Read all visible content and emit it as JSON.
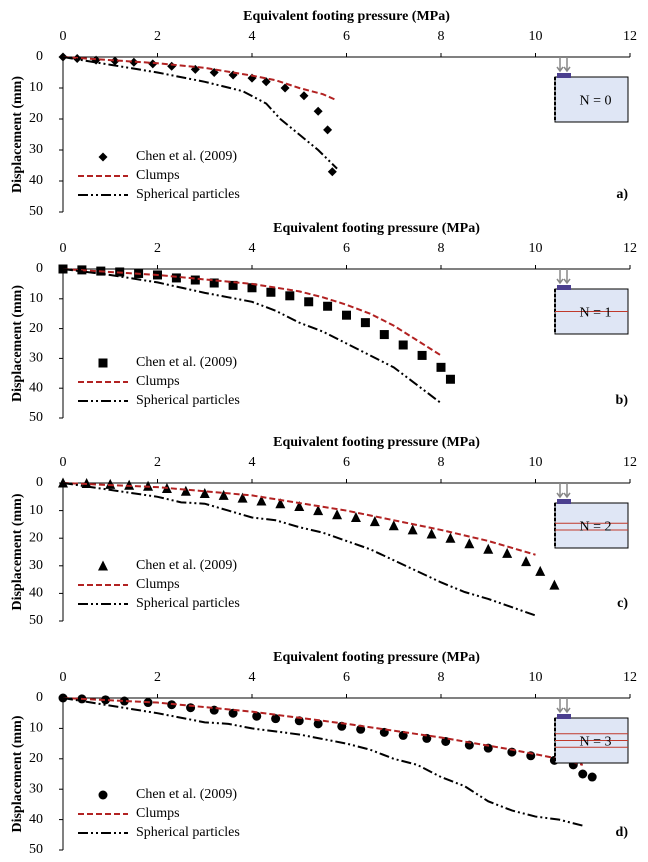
{
  "chart_data": [
    {
      "type": "line",
      "title": "Equivalent footing pressure (MPa)",
      "ylabel": "Displacement (mm)",
      "panel_label": "a)",
      "inset_label": "N = 0",
      "xlim": [
        0,
        12
      ],
      "xticks": [
        0,
        2,
        4,
        6,
        8,
        10,
        12
      ],
      "ylim": [
        0,
        50
      ],
      "yticks": [
        0,
        10,
        20,
        30,
        40,
        50
      ],
      "y_inverted": true,
      "series": [
        {
          "name": "Chen et al. (2009)",
          "color": "#000000",
          "style": "diamond",
          "x": [
            0,
            0.3,
            0.7,
            1.1,
            1.5,
            1.9,
            2.3,
            2.8,
            3.2,
            3.6,
            4.0,
            4.3,
            4.7,
            5.1,
            5.4,
            5.6,
            5.7
          ],
          "values": [
            0,
            0.5,
            1,
            1.3,
            1.7,
            2.2,
            3,
            4,
            5,
            5.8,
            6.8,
            8,
            10,
            12.5,
            17.5,
            23.5,
            37
          ]
        },
        {
          "name": "Clumps",
          "color": "#b22222",
          "style": "dashed",
          "x": [
            0,
            1,
            2,
            3,
            4,
            4.5,
            5,
            5.5,
            5.8
          ],
          "values": [
            0,
            1,
            2,
            3.5,
            6,
            7.5,
            10,
            12,
            14
          ]
        },
        {
          "name": "Spherical particles",
          "color": "#000000",
          "style": "dashdot",
          "x": [
            0,
            1,
            2,
            3,
            3.8,
            4.3,
            4.6,
            5,
            5.4,
            5.8
          ],
          "values": [
            0,
            2.5,
            5,
            8,
            11,
            15,
            20,
            25,
            30,
            36
          ]
        }
      ]
    },
    {
      "type": "line",
      "title": "Equivalent footing pressure (MPa)",
      "ylabel": "Displacement (mm)",
      "panel_label": "b)",
      "inset_label": "N = 1",
      "xlim": [
        0,
        12
      ],
      "xticks": [
        0,
        2,
        4,
        6,
        8,
        10,
        12
      ],
      "ylim": [
        0,
        50
      ],
      "yticks": [
        0,
        10,
        20,
        30,
        40,
        50
      ],
      "y_inverted": true,
      "series": [
        {
          "name": "Chen et al. (2009)",
          "color": "#000000",
          "style": "square",
          "x": [
            0,
            0.4,
            0.8,
            1.2,
            1.6,
            2,
            2.4,
            2.8,
            3.2,
            3.6,
            4,
            4.4,
            4.8,
            5.2,
            5.6,
            6,
            6.4,
            6.8,
            7.2,
            7.6,
            8.0,
            8.2
          ],
          "values": [
            0,
            0.3,
            0.7,
            1,
            1.5,
            2,
            3,
            3.7,
            4.7,
            5.5,
            6.3,
            7.8,
            9,
            11,
            12.5,
            15.5,
            18,
            22,
            25.5,
            29,
            33,
            37
          ]
        },
        {
          "name": "Clumps",
          "color": "#b22222",
          "style": "dashed",
          "x": [
            0,
            2,
            4,
            5,
            5.5,
            6,
            6.5,
            7,
            7.5,
            8
          ],
          "values": [
            0,
            2,
            5,
            7.5,
            9.5,
            12,
            15,
            19,
            24,
            29
          ]
        },
        {
          "name": "Spherical particles",
          "color": "#000000",
          "style": "dashdot",
          "x": [
            0,
            1,
            2,
            3,
            3.5,
            4,
            4.5,
            5,
            5.5,
            6,
            6.5,
            7,
            7.5,
            8
          ],
          "values": [
            0,
            2,
            4.5,
            8,
            9.5,
            11,
            14,
            18,
            21,
            25,
            29,
            33,
            39,
            45
          ]
        }
      ]
    },
    {
      "type": "line",
      "title": "Equivalent footing pressure (MPa)",
      "ylabel": "Displacement (mm)",
      "panel_label": "c)",
      "inset_label": "N = 2",
      "xlim": [
        0,
        12
      ],
      "xticks": [
        0,
        2,
        4,
        6,
        8,
        10,
        12
      ],
      "ylim": [
        0,
        50
      ],
      "yticks": [
        0,
        10,
        20,
        30,
        40,
        50
      ],
      "y_inverted": true,
      "series": [
        {
          "name": "Chen et al. (2009)",
          "color": "#000000",
          "style": "triangle",
          "x": [
            0,
            0.5,
            1,
            1.4,
            1.8,
            2.2,
            2.6,
            3,
            3.4,
            3.8,
            4.2,
            4.6,
            5,
            5.4,
            5.8,
            6.2,
            6.6,
            7,
            7.4,
            7.8,
            8.2,
            8.6,
            9,
            9.4,
            9.8,
            10.1,
            10.4
          ],
          "values": [
            0,
            0.2,
            0.5,
            0.8,
            1.2,
            2,
            3,
            3.8,
            4.5,
            5.5,
            6.5,
            7.5,
            8.5,
            10,
            11.5,
            12.5,
            14,
            15.5,
            17,
            18.5,
            20,
            22,
            24,
            25.5,
            28.5,
            32,
            37
          ]
        },
        {
          "name": "Clumps",
          "color": "#b22222",
          "style": "dashed",
          "x": [
            0,
            2,
            4,
            6,
            8,
            9,
            10
          ],
          "values": [
            0,
            1.5,
            4.5,
            10,
            17,
            21,
            26
          ]
        },
        {
          "name": "Spherical particles",
          "color": "#000000",
          "style": "dashdot",
          "x": [
            0,
            1,
            2,
            2.5,
            3,
            3.5,
            4,
            4.5,
            5,
            5.5,
            6,
            6.5,
            7,
            7.5,
            8,
            8.5,
            9,
            9.5,
            10
          ],
          "values": [
            0,
            2.5,
            5,
            7,
            7.5,
            10,
            12.5,
            13.5,
            16,
            18,
            21,
            24,
            28,
            32,
            36,
            39.5,
            42,
            45,
            48
          ]
        }
      ]
    },
    {
      "type": "line",
      "title": "Equivalent footing pressure (MPa)",
      "ylabel": "Displacement (mm)",
      "panel_label": "d)",
      "inset_label": "N = 3",
      "xlim": [
        0,
        12
      ],
      "xticks": [
        0,
        2,
        4,
        6,
        8,
        10,
        12
      ],
      "ylim": [
        0,
        50
      ],
      "yticks": [
        0,
        10,
        20,
        30,
        40,
        50
      ],
      "y_inverted": true,
      "series": [
        {
          "name": "Chen et al. (2009)",
          "color": "#000000",
          "style": "circle",
          "x": [
            0,
            0.4,
            0.9,
            1.3,
            1.8,
            2.3,
            2.7,
            3.2,
            3.6,
            4.1,
            4.5,
            5,
            5.4,
            5.9,
            6.3,
            6.8,
            7.2,
            7.7,
            8.1,
            8.6,
            9,
            9.5,
            9.9,
            10.4,
            10.8,
            11.0,
            11.2
          ],
          "values": [
            0,
            0.3,
            0.6,
            1,
            1.5,
            2.2,
            3.2,
            4,
            5,
            6,
            6.8,
            7.5,
            8.5,
            9.3,
            10.3,
            11.3,
            12.3,
            13.3,
            14.3,
            15.5,
            16.5,
            17.8,
            19,
            20.5,
            22,
            25,
            26
          ]
        },
        {
          "name": "Clumps",
          "color": "#b22222",
          "style": "dashed",
          "x": [
            0,
            2,
            4,
            6,
            8,
            9.5,
            10.5,
            11
          ],
          "values": [
            0,
            1.5,
            4.5,
            8.5,
            13,
            17,
            20,
            22
          ]
        },
        {
          "name": "Spherical particles",
          "color": "#000000",
          "style": "dashdot",
          "x": [
            0,
            1,
            2,
            3,
            3.5,
            4,
            5,
            6,
            6.5,
            7,
            7.5,
            8,
            8.5,
            9,
            9.5,
            10,
            10.5,
            11
          ],
          "values": [
            0,
            2.5,
            5,
            8,
            8.5,
            10,
            12,
            15,
            17,
            20,
            22,
            26,
            29,
            34,
            37,
            39,
            40,
            42
          ]
        }
      ]
    }
  ]
}
